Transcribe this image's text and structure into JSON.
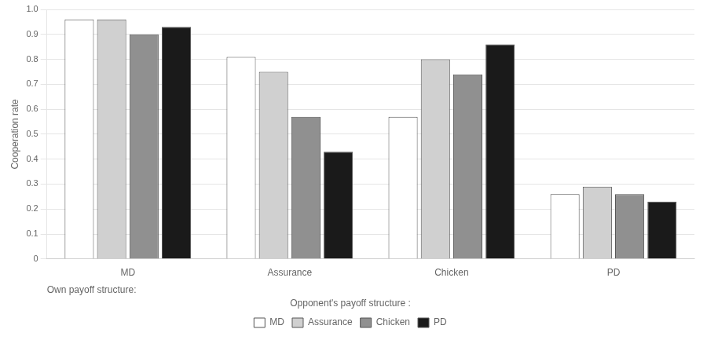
{
  "chart_data": {
    "type": "bar",
    "ylabel": "Cooperation rate",
    "xlabel": "Own payoff structure:",
    "legend_title": "Opponent's payoff structure :",
    "categories": [
      "MD",
      "Assurance",
      "Chicken",
      "PD"
    ],
    "series": [
      {
        "name": "MD",
        "color": "#ffffff",
        "values": [
          0.96,
          0.81,
          0.57,
          0.26
        ]
      },
      {
        "name": "Assurance",
        "color": "#d0d0d0",
        "values": [
          0.96,
          0.75,
          0.8,
          0.29
        ]
      },
      {
        "name": "Chicken",
        "color": "#909090",
        "values": [
          0.9,
          0.57,
          0.74,
          0.26
        ]
      },
      {
        "name": "PD",
        "color": "#1a1a1a",
        "values": [
          0.93,
          0.43,
          0.86,
          0.23
        ]
      }
    ],
    "ylim": [
      0,
      1.0
    ],
    "yticks": [
      0,
      0.1,
      0.2,
      0.3,
      0.4,
      0.5,
      0.6,
      0.7,
      0.8,
      0.9,
      {
        "value": 1,
        "label": "1.0"
      }
    ],
    "grid": "y",
    "legend": "bottom"
  }
}
